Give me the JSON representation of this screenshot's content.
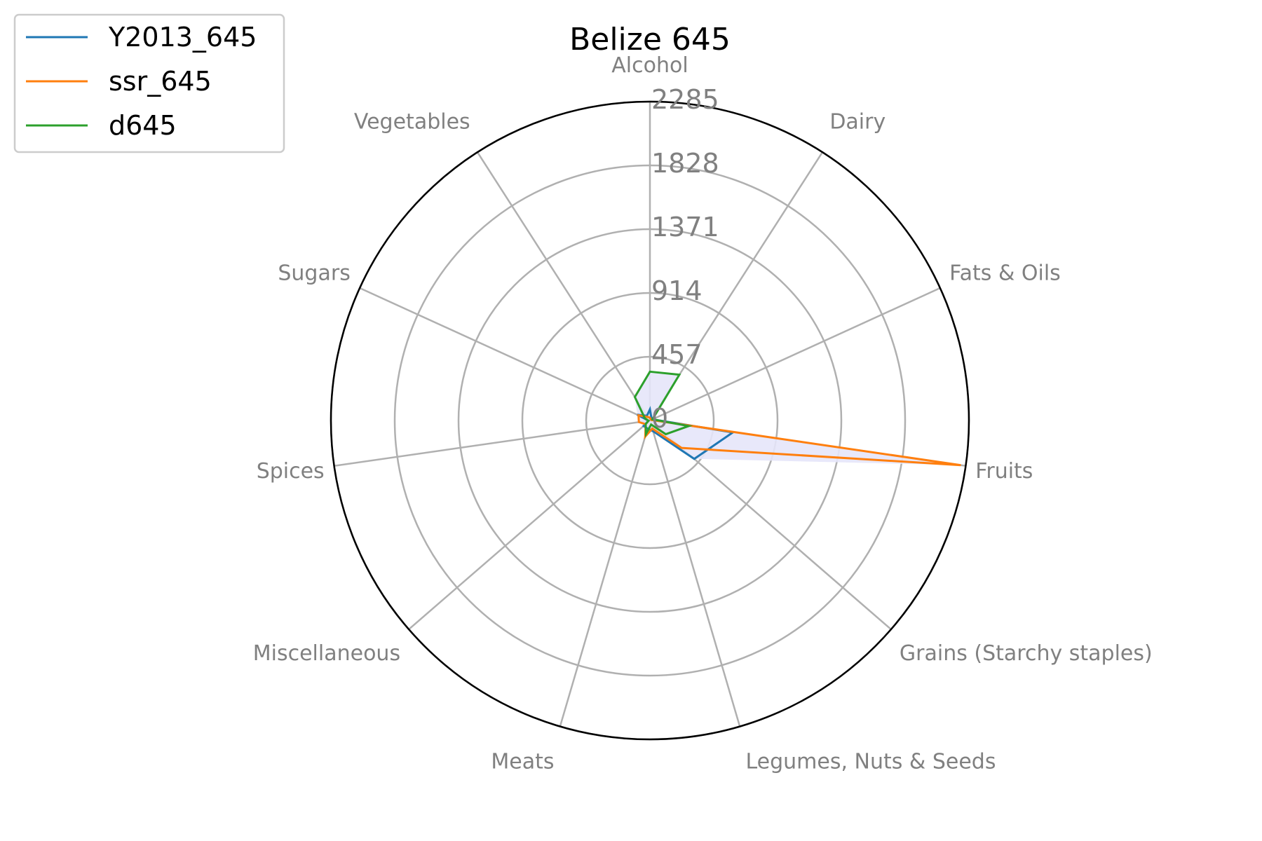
{
  "chart_data": {
    "type": "radar",
    "title": "Belize 645",
    "categories": [
      "Alcohol",
      "Dairy",
      "Fats & Oils",
      "Fruits",
      "Grains (Starchy staples)",
      "Legumes, Nuts & Seeds",
      "Meats",
      "Miscellaneous",
      "Spices",
      "Sugars",
      "Vegetables"
    ],
    "r_ticks": [
      "0",
      "457",
      "914",
      "1371",
      "1828",
      "2285"
    ],
    "r_max": 2285,
    "grid": true,
    "legend_position": "top-left",
    "fill_color": "#e6e6fa",
    "series": [
      {
        "name": "Y2013_645",
        "color": "#1f77b4",
        "values": [
          80,
          20,
          20,
          600,
          420,
          80,
          60,
          60,
          10,
          100,
          40
        ]
      },
      {
        "name": "ssr_645",
        "color": "#ff7f0e",
        "values": [
          20,
          10,
          10,
          2250,
          300,
          60,
          120,
          40,
          80,
          90,
          30
        ]
      },
      {
        "name": "d645",
        "color": "#2ca02c",
        "values": [
          350,
          390,
          20,
          280,
          150,
          30,
          100,
          40,
          10,
          40,
          200
        ]
      }
    ]
  }
}
